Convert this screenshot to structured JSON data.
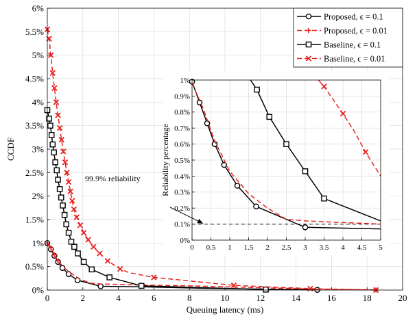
{
  "chart_data": [
    {
      "id": "main",
      "type": "line",
      "xlabel": "Queuing latency (ms)",
      "ylabel": "CCDF",
      "xlim": [
        0,
        20
      ],
      "ylim": [
        0,
        6
      ],
      "xticks": [
        0,
        2,
        4,
        6,
        8,
        10,
        12,
        14,
        16,
        18,
        20
      ],
      "yticks": [
        0,
        0.5,
        1,
        1.5,
        2,
        2.5,
        3,
        3.5,
        4,
        4.5,
        5,
        5.5,
        6
      ],
      "xtick_labels": [
        "0",
        "2",
        "4",
        "6",
        "8",
        "10",
        "12",
        "14",
        "16",
        "18",
        "20"
      ],
      "ytick_labels": [
        "0%",
        "0.5%",
        "1%",
        "1.5%",
        "2%",
        "2.5%",
        "3%",
        "3.5%",
        "4%",
        "4.5%",
        "5%",
        "5.5%",
        "6%"
      ],
      "grid": true,
      "legend_position": "top-right",
      "annotation": "99.9% reliability",
      "series": [
        {
          "name": "Proposed, ϵ = 0.1",
          "color": "#000000",
          "dash": "solid",
          "marker": "circle",
          "points": [
            [
              0,
              1.0
            ],
            [
              0.2,
              0.87
            ],
            [
              0.4,
              0.73
            ],
            [
              0.6,
              0.6
            ],
            [
              0.85,
              0.47
            ],
            [
              1.2,
              0.34
            ],
            [
              1.7,
              0.21
            ],
            [
              3.0,
              0.08
            ],
            [
              5.3,
              0.07
            ],
            [
              8.6,
              0.04
            ],
            [
              12.2,
              0.02
            ],
            [
              15.2,
              0.005
            ]
          ],
          "markers": [
            [
              0,
              1.0
            ],
            [
              0.2,
              0.87
            ],
            [
              0.4,
              0.73
            ],
            [
              0.6,
              0.6
            ],
            [
              0.85,
              0.47
            ],
            [
              1.2,
              0.34
            ],
            [
              1.7,
              0.21
            ],
            [
              3.0,
              0.08
            ],
            [
              15.2,
              0.005
            ]
          ]
        },
        {
          "name": "Proposed, ϵ = 0.01",
          "color": "#e8211f",
          "dash": "dash",
          "marker": "plus",
          "points": [
            [
              0,
              1.0
            ],
            [
              0.2,
              0.9
            ],
            [
              0.4,
              0.75
            ],
            [
              0.6,
              0.62
            ],
            [
              0.9,
              0.49
            ],
            [
              1.3,
              0.37
            ],
            [
              1.8,
              0.24
            ],
            [
              2.4,
              0.15
            ],
            [
              3.0,
              0.13
            ],
            [
              5.0,
              0.11
            ],
            [
              8.0,
              0.09
            ],
            [
              12.0,
              0.05
            ],
            [
              15.0,
              0.02
            ],
            [
              18.5,
              0.003
            ]
          ],
          "markers": [
            [
              0,
              1.0
            ],
            [
              0.2,
              0.9
            ],
            [
              0.4,
              0.75
            ],
            [
              0.6,
              0.62
            ],
            [
              18.5,
              0.003
            ]
          ]
        },
        {
          "name": "Baseline, ϵ = 0.1",
          "color": "#000000",
          "dash": "solid",
          "marker": "square",
          "points": [
            [
              0,
              3.83
            ],
            [
              0.1,
              3.65
            ],
            [
              0.17,
              3.5
            ],
            [
              0.24,
              3.3
            ],
            [
              0.3,
              3.1
            ],
            [
              0.37,
              2.93
            ],
            [
              0.45,
              2.72
            ],
            [
              0.53,
              2.55
            ],
            [
              0.6,
              2.35
            ],
            [
              0.7,
              2.15
            ],
            [
              0.78,
              1.97
            ],
            [
              0.87,
              1.8
            ],
            [
              0.97,
              1.6
            ],
            [
              1.07,
              1.4
            ],
            [
              1.2,
              1.22
            ],
            [
              1.35,
              1.03
            ],
            [
              1.52,
              0.92
            ],
            [
              1.72,
              0.78
            ],
            [
              2.05,
              0.6
            ],
            [
              2.5,
              0.44
            ],
            [
              3.5,
              0.27
            ],
            [
              5.3,
              0.09
            ],
            [
              12.3,
              0.01
            ]
          ],
          "markers": [
            [
              0,
              3.83
            ],
            [
              0.1,
              3.65
            ],
            [
              0.17,
              3.5
            ],
            [
              0.24,
              3.3
            ],
            [
              0.3,
              3.1
            ],
            [
              0.37,
              2.93
            ],
            [
              0.45,
              2.72
            ],
            [
              0.53,
              2.55
            ],
            [
              0.6,
              2.35
            ],
            [
              0.7,
              2.15
            ],
            [
              0.78,
              1.97
            ],
            [
              0.87,
              1.8
            ],
            [
              0.97,
              1.6
            ],
            [
              1.07,
              1.4
            ],
            [
              1.2,
              1.22
            ],
            [
              1.35,
              1.03
            ],
            [
              1.52,
              0.92
            ],
            [
              1.72,
              0.78
            ],
            [
              2.05,
              0.6
            ],
            [
              2.5,
              0.44
            ],
            [
              3.5,
              0.27
            ],
            [
              5.3,
              0.09
            ],
            [
              12.3,
              0.01
            ]
          ]
        },
        {
          "name": "Baseline, ϵ = 0.01",
          "color": "#e8211f",
          "dash": "dash",
          "marker": "x",
          "points": [
            [
              0,
              5.55
            ],
            [
              0.1,
              5.35
            ],
            [
              0.2,
              5.0
            ],
            [
              0.3,
              4.62
            ],
            [
              0.4,
              4.3
            ],
            [
              0.5,
              4.0
            ],
            [
              0.6,
              3.72
            ],
            [
              0.7,
              3.45
            ],
            [
              0.8,
              3.2
            ],
            [
              0.9,
              2.95
            ],
            [
              1.0,
              2.72
            ],
            [
              1.1,
              2.5
            ],
            [
              1.2,
              2.3
            ],
            [
              1.3,
              2.1
            ],
            [
              1.4,
              1.9
            ],
            [
              1.5,
              1.72
            ],
            [
              1.65,
              1.55
            ],
            [
              1.85,
              1.38
            ],
            [
              2.05,
              1.22
            ],
            [
              2.3,
              1.07
            ],
            [
              2.6,
              0.92
            ],
            [
              2.95,
              0.78
            ],
            [
              3.4,
              0.62
            ],
            [
              4.1,
              0.45
            ],
            [
              4.6,
              0.37
            ],
            [
              6.0,
              0.27
            ],
            [
              10.5,
              0.1
            ],
            [
              14.8,
              0.03
            ],
            [
              18.5,
              0.0
            ]
          ],
          "markers": [
            [
              0,
              5.55
            ],
            [
              0.1,
              5.35
            ],
            [
              0.2,
              5.0
            ],
            [
              0.3,
              4.62
            ],
            [
              0.4,
              4.3
            ],
            [
              0.5,
              4.0
            ],
            [
              0.6,
              3.72
            ],
            [
              0.7,
              3.45
            ],
            [
              0.8,
              3.2
            ],
            [
              0.9,
              2.95
            ],
            [
              1.0,
              2.72
            ],
            [
              1.1,
              2.5
            ],
            [
              1.2,
              2.3
            ],
            [
              1.3,
              2.1
            ],
            [
              1.4,
              1.9
            ],
            [
              1.5,
              1.72
            ],
            [
              1.65,
              1.55
            ],
            [
              1.85,
              1.38
            ],
            [
              2.05,
              1.22
            ],
            [
              2.3,
              1.07
            ],
            [
              2.6,
              0.92
            ],
            [
              2.95,
              0.78
            ],
            [
              3.4,
              0.62
            ],
            [
              4.1,
              0.45
            ],
            [
              6.0,
              0.27
            ],
            [
              10.5,
              0.1
            ],
            [
              14.8,
              0.03
            ],
            [
              18.5,
              0.0
            ]
          ]
        }
      ]
    },
    {
      "id": "inset",
      "type": "line",
      "xlabel": "",
      "ylabel": "Reliability percentage",
      "xlim": [
        0,
        5
      ],
      "ylim": [
        0,
        1
      ],
      "xticks": [
        0,
        0.5,
        1,
        1.5,
        2,
        2.5,
        3,
        3.5,
        4,
        4.5,
        5
      ],
      "yticks": [
        0,
        0.1,
        0.2,
        0.3,
        0.4,
        0.5,
        0.6,
        0.7,
        0.8,
        0.9,
        1
      ],
      "xtick_labels": [
        "0",
        "0.5",
        "1",
        "1.5",
        "2",
        "2.5",
        "3",
        "3.5",
        "4",
        "4.5",
        "5"
      ],
      "ytick_labels": [
        "0%",
        "0.1%",
        "0.2%",
        "0.3%",
        "0.4%",
        "0.5%",
        "0.6%",
        "0.7%",
        "0.8%",
        "0.9%",
        "1%"
      ],
      "grid": true,
      "reference_line": 0.1,
      "series": [
        {
          "name": "Proposed, ϵ = 0.1",
          "color": "#000000",
          "dash": "solid",
          "marker": "circle",
          "points": [
            [
              0,
              0.99
            ],
            [
              0.2,
              0.86
            ],
            [
              0.4,
              0.73
            ],
            [
              0.6,
              0.6
            ],
            [
              0.85,
              0.47
            ],
            [
              1.2,
              0.34
            ],
            [
              1.7,
              0.21
            ],
            [
              3.0,
              0.08
            ],
            [
              5.0,
              0.07
            ]
          ],
          "markers": [
            [
              0,
              0.99
            ],
            [
              0.2,
              0.86
            ],
            [
              0.4,
              0.73
            ],
            [
              0.6,
              0.6
            ],
            [
              0.85,
              0.47
            ],
            [
              1.2,
              0.34
            ],
            [
              1.7,
              0.21
            ],
            [
              3.0,
              0.08
            ]
          ]
        },
        {
          "name": "Proposed, ϵ = 0.01",
          "color": "#e8211f",
          "dash": "dash",
          "marker": "plus",
          "points": [
            [
              0,
              0.98
            ],
            [
              0.3,
              0.82
            ],
            [
              0.6,
              0.62
            ],
            [
              1.0,
              0.43
            ],
            [
              1.5,
              0.29
            ],
            [
              2.0,
              0.2
            ],
            [
              2.5,
              0.13
            ],
            [
              3.0,
              0.12
            ],
            [
              4.0,
              0.11
            ],
            [
              5.0,
              0.1
            ]
          ],
          "markers": []
        },
        {
          "name": "Baseline, ϵ = 0.1",
          "color": "#000000",
          "dash": "solid",
          "marker": "square",
          "points": [
            [
              1.55,
              1.0
            ],
            [
              1.72,
              0.94
            ],
            [
              2.05,
              0.77
            ],
            [
              2.5,
              0.6
            ],
            [
              3.0,
              0.43
            ],
            [
              3.5,
              0.26
            ],
            [
              5.0,
              0.12
            ]
          ],
          "markers": [
            [
              1.72,
              0.94
            ],
            [
              2.05,
              0.77
            ],
            [
              2.5,
              0.6
            ],
            [
              3.0,
              0.43
            ],
            [
              3.5,
              0.26
            ]
          ]
        },
        {
          "name": "Baseline, ϵ = 0.01",
          "color": "#e8211f",
          "dash": "dash",
          "marker": "x",
          "points": [
            [
              3.35,
              1.0
            ],
            [
              3.5,
              0.96
            ],
            [
              4.0,
              0.79
            ],
            [
              4.3,
              0.68
            ],
            [
              4.6,
              0.55
            ],
            [
              5.0,
              0.4
            ]
          ],
          "markers": [
            [
              3.5,
              0.96
            ],
            [
              4.0,
              0.79
            ],
            [
              4.6,
              0.55
            ]
          ]
        }
      ]
    }
  ]
}
